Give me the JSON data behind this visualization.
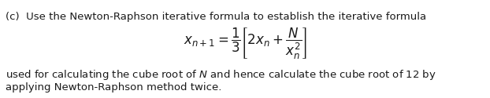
{
  "line1": "(c)  Use the Newton-Raphson iterative formula to establish the iterative formula",
  "formula": "$x_{n+1} = \\dfrac{1}{3}\\left[2x_n + \\dfrac{N}{x_n^2}\\right]$",
  "line3": "used for calculating the cube root of $N$ and hence calculate the cube root of 12 by",
  "line4": "applying Newton-Raphson method twice.",
  "bg_color": "#ffffff",
  "text_color": "#1a1a1a",
  "fontsize_text": 9.5,
  "fontsize_formula": 12.0
}
